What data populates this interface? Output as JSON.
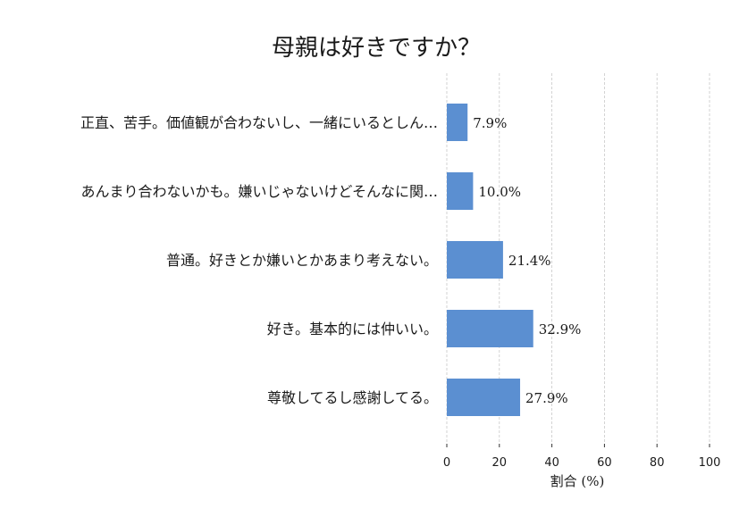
{
  "chart_data": {
    "type": "bar",
    "orientation": "horizontal",
    "title": "母親は好きですか？",
    "xlabel": "割合 (%)",
    "ylabel": "",
    "xlim": [
      0,
      100
    ],
    "xticks": [
      0,
      20,
      40,
      60,
      80,
      100
    ],
    "grid": true,
    "categories": [
      "正直、苦手。価値観が合わないし、一緒にいるとしん…",
      "あんまり合わないかも。嫌いじゃないけどそんなに関…",
      "普通。好きとか嫌いとかあまり考えない。",
      "好き。基本的には仲いい。",
      "尊敬してるし感謝してる。"
    ],
    "values": [
      7.9,
      10.0,
      21.4,
      32.9,
      27.9
    ],
    "value_labels": [
      "7.9%",
      "10.0%",
      "21.4%",
      "32.9%",
      "27.9%"
    ],
    "bar_color": "#5b8fd1"
  }
}
